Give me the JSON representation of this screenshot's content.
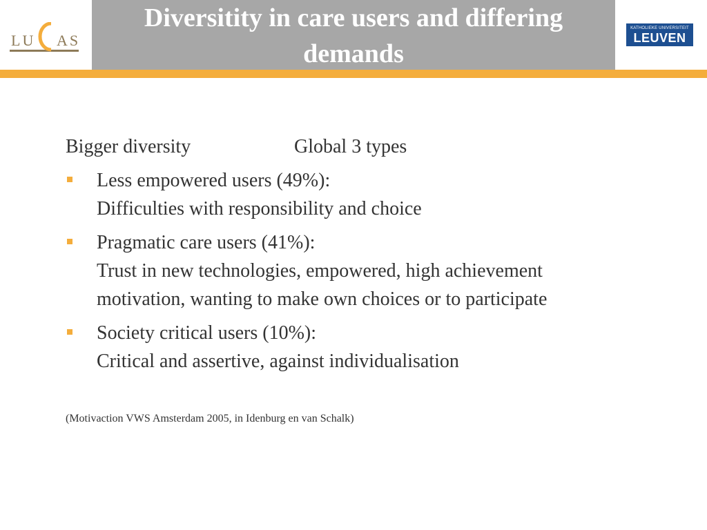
{
  "slide": {
    "title": "Diversitity in care users and differing demands",
    "logos": {
      "left": "LUCAS",
      "right_top": "KATHOLIEKE UNIVERSITEIT",
      "right_main": "LEUVEN"
    },
    "intro": {
      "left": "Bigger diversity",
      "right": "Global 3 types"
    },
    "bullets": [
      {
        "heading": "Less empowered users (49%):",
        "lines": [
          "Difficulties with responsibility and choice"
        ]
      },
      {
        "heading": "Pragmatic care users (41%):",
        "lines": [
          "Trust in new technologies, empowered, high achievement",
          "motivation, wanting to make own choices or to participate"
        ]
      },
      {
        "heading": "Society critical users  (10%):",
        "lines": [
          "Critical and assertive, against individualisation"
        ]
      }
    ],
    "citation": "(Motivaction VWS Amsterdam 2005, in Idenburg en van Schalk)"
  },
  "colors": {
    "accent_orange": "#f4ad3c",
    "title_box_grey": "#a7a7a7",
    "leuven_blue": "#1d4f91",
    "lucas_brown": "#8d7a58",
    "body_text": "#333333"
  }
}
